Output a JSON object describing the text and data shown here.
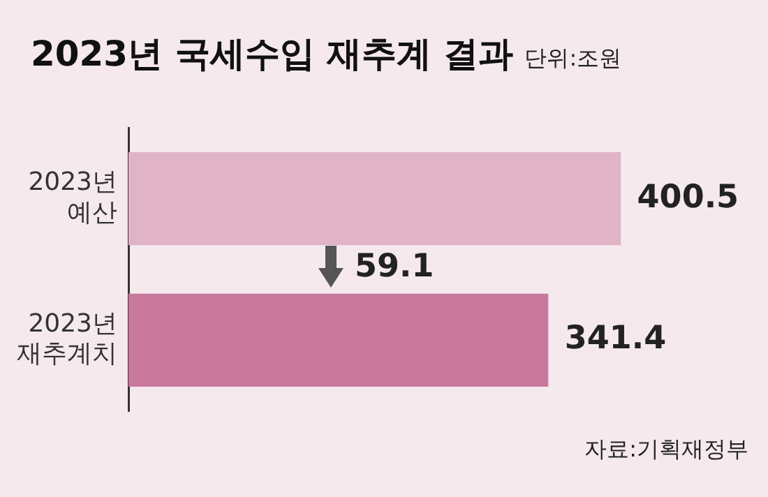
{
  "chart_data": {
    "type": "bar",
    "orientation": "horizontal",
    "title": "2023년 국세수입 재추계 결과",
    "subtitle": "단위:조원",
    "categories": [
      "2023년 예산",
      "2023년 재추계치"
    ],
    "values": [
      400.5,
      341.4
    ],
    "colors": [
      "#e0b4c6",
      "#c8789a"
    ],
    "data_labels": true,
    "tick_labels": "y",
    "annotations": [
      "59.1",
      "자료:기획재정부"
    ]
  }
}
